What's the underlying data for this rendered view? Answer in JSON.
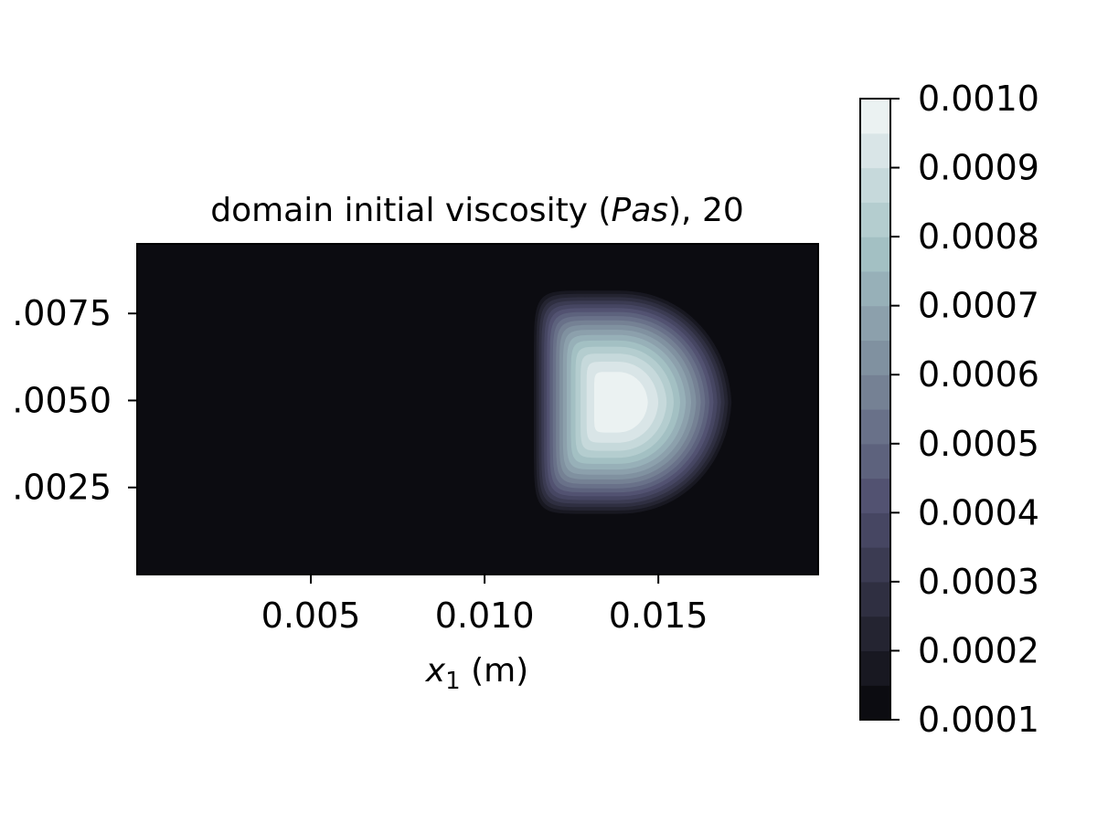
{
  "chart_data": {
    "type": "heatmap",
    "title_prefix": "domain initial viscosity (",
    "title_italic": "Pas",
    "title_suffix": "), 20",
    "xlabel_var": "x",
    "xlabel_sub": "1",
    "xlabel_unit": " (m)",
    "xlim": [
      0,
      0.0196
    ],
    "ylim": [
      0,
      0.0095
    ],
    "x_ticks": [
      {
        "value": 0.005,
        "label": "0.005"
      },
      {
        "value": 0.01,
        "label": "0.010"
      },
      {
        "value": 0.015,
        "label": "0.015"
      }
    ],
    "y_ticks": [
      {
        "value": 0.0025,
        "label": ".0025"
      },
      {
        "value": 0.005,
        "label": ".0050"
      },
      {
        "value": 0.0075,
        "label": ".0075"
      }
    ],
    "colorbar": {
      "min": 0.0001,
      "max": 0.001,
      "levels": 18,
      "ticks": [
        {
          "value": 0.0001,
          "label": "0.0001"
        },
        {
          "value": 0.0002,
          "label": "0.0002"
        },
        {
          "value": 0.0003,
          "label": "0.0003"
        },
        {
          "value": 0.0004,
          "label": "0.0004"
        },
        {
          "value": 0.0005,
          "label": "0.0005"
        },
        {
          "value": 0.0006,
          "label": "0.0006"
        },
        {
          "value": 0.0007,
          "label": "0.0007"
        },
        {
          "value": 0.0008,
          "label": "0.0008"
        },
        {
          "value": 0.0009,
          "label": "0.0009"
        },
        {
          "value": 0.001,
          "label": "0.0010"
        }
      ]
    },
    "colormap": "bone",
    "background_value": 0.0001,
    "blob": {
      "center": [
        0.0138,
        0.00495
      ],
      "radius_x_left": 0.00245,
      "radius_x_right": 0.0034,
      "radius_y_up": 0.0033,
      "radius_y_down": 0.0033,
      "peak_value": 0.001
    }
  }
}
